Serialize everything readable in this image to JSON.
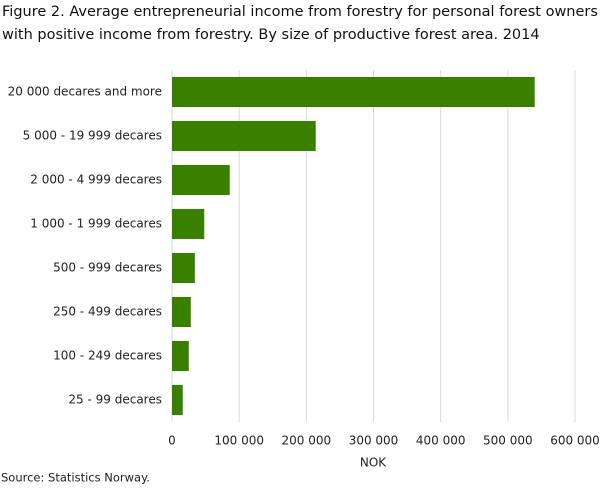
{
  "chart_data": {
    "type": "bar",
    "orientation": "horizontal",
    "title": [
      "Figure 2. Average entrepreneurial income from forestry for personal forest owners",
      "with positive income from forestry. By size of productive forest area. 2014"
    ],
    "categories": [
      "20 000 decares and more",
      "5 000 - 19 999 decares",
      "2 000 - 4 999 decares",
      "1 000 - 1 999 decares",
      "500 - 999 decares",
      "250 - 499 decares",
      "100 - 249 decares",
      "25 - 99 decares"
    ],
    "values": [
      540000,
      214000,
      86000,
      48000,
      34000,
      28000,
      25000,
      16000
    ],
    "color": "#3a8000",
    "xlabel": "NOK",
    "xlim": [
      0,
      600000
    ],
    "xticks": [
      0,
      {
        "value": 100000,
        "label": "100 000"
      },
      {
        "value": 200000,
        "label": "200 000"
      },
      {
        "value": 300000,
        "label": "300 000"
      },
      {
        "value": 400000,
        "label": "400 000"
      },
      {
        "value": 500000,
        "label": "500 000"
      },
      {
        "value": 600000,
        "label": "600 000"
      }
    ],
    "grid": true,
    "source": "Source: Statistics Norway."
  }
}
